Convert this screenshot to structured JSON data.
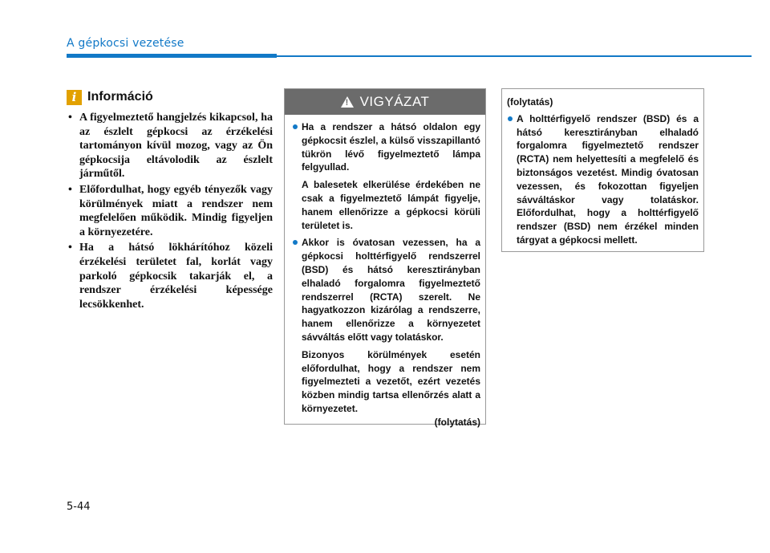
{
  "header": {
    "section_title": "A gépkocsi vezetése"
  },
  "page_number": "5-44",
  "info": {
    "icon_glyph": "i",
    "icon_name": "info-icon",
    "title": "Információ",
    "items": [
      "A figyelmeztető hangjelzés kikapcsol, ha az észlelt gépkocsi az érzékelési tartományon kívül mozog, vagy az Ön gépkocsija eltávolodik az észlelt járműtől.",
      "Előfordulhat, hogy egyéb tényezők vagy körülmények miatt a rendszer nem megfelelően működik. Mindig figyeljen a környezetére.",
      "Ha a hátsó lökhárítóhoz közeli érzékelési területet fal, korlát vagy parkoló gépkocsik takarják el, a rendszer érzékelési képessége lecsökkenhet."
    ]
  },
  "warning": {
    "icon_name": "warning-triangle-icon",
    "title": "VIGYÁZAT",
    "bullet1": "Ha a rendszer a hátsó oldalon egy gépkocsit észlel, a külső visszapillantó tükrön lévő figyelmeztető lámpa felgyullad.",
    "bullet1_para": "A balesetek elkerülése érdekében ne csak a figyelmeztető lámpát figyelje, hanem ellenőrizze a gépkocsi körüli területet is.",
    "bullet2": "Akkor is óvatosan vezessen, ha a gépkocsi holttérfigyelő rendszerrel (BSD) és hátsó keresztirányban elhaladó forgalomra figyelmeztető rendszerrel (RCTA) szerelt. Ne hagyatkozzon kizárólag a rendszerre, hanem ellenőrizze a környezetet sávváltás előtt vagy tolatáskor.",
    "bullet2_para": "Bizonyos körülmények esetén előfordulhat, hogy a rendszer nem figyelmezteti a vezetőt, ezért vezetés közben mindig tartsa ellenőrzés alatt a környezetet.",
    "continued": "(folytatás)"
  },
  "continuation": {
    "label": "(folytatás)",
    "bullet": "A holttérfigyelő rendszer (BSD) és a hátsó keresztirányban elhaladó forgalomra figyelmeztető rendszer (RCTA) nem helyettesíti a megfelelő és biztonságos vezetést. Mindig óvatosan vezessen, és fokozottan figyeljen sávváltáskor vagy tolatáskor. Előfordulhat, hogy a holttérfigyelő rendszer (BSD) nem érzékel minden tárgyat a gépkocsi mellett."
  },
  "colors": {
    "accent": "#1279c7",
    "info_icon": "#e2a100",
    "warning_header": "#6b6b6b"
  }
}
